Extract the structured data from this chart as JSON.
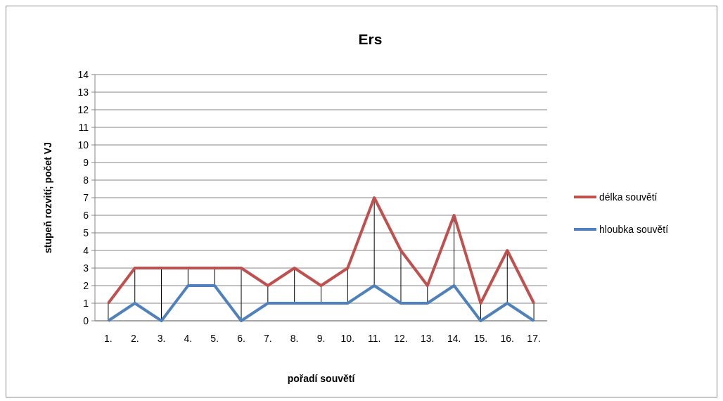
{
  "chart_data": {
    "type": "line",
    "title": "Ers",
    "xlabel": "pořadí souvětí",
    "ylabel": "stupeň rozvití; počet VJ",
    "categories": [
      "1.",
      "2.",
      "3.",
      "4.",
      "5.",
      "6.",
      "7.",
      "8.",
      "9.",
      "10.",
      "11.",
      "12.",
      "13.",
      "14.",
      "15.",
      "16.",
      "17."
    ],
    "series": [
      {
        "name": "délka souvětí",
        "color": "#c0504d",
        "values": [
          1,
          3,
          3,
          3,
          3,
          3,
          2,
          3,
          2,
          3,
          7,
          4,
          2,
          6,
          1,
          4,
          1
        ]
      },
      {
        "name": "hloubka souvětí",
        "color": "#4f81bd",
        "values": [
          0,
          1,
          0,
          2,
          2,
          0,
          1,
          1,
          1,
          1,
          2,
          1,
          1,
          2,
          0,
          1,
          0
        ]
      }
    ],
    "ylim": [
      0,
      14
    ],
    "yticks": [
      0,
      1,
      2,
      3,
      4,
      5,
      6,
      7,
      8,
      9,
      10,
      11,
      12,
      13,
      14
    ],
    "grid": "y",
    "legend": "right",
    "marker": "none",
    "line_style": "solid"
  }
}
